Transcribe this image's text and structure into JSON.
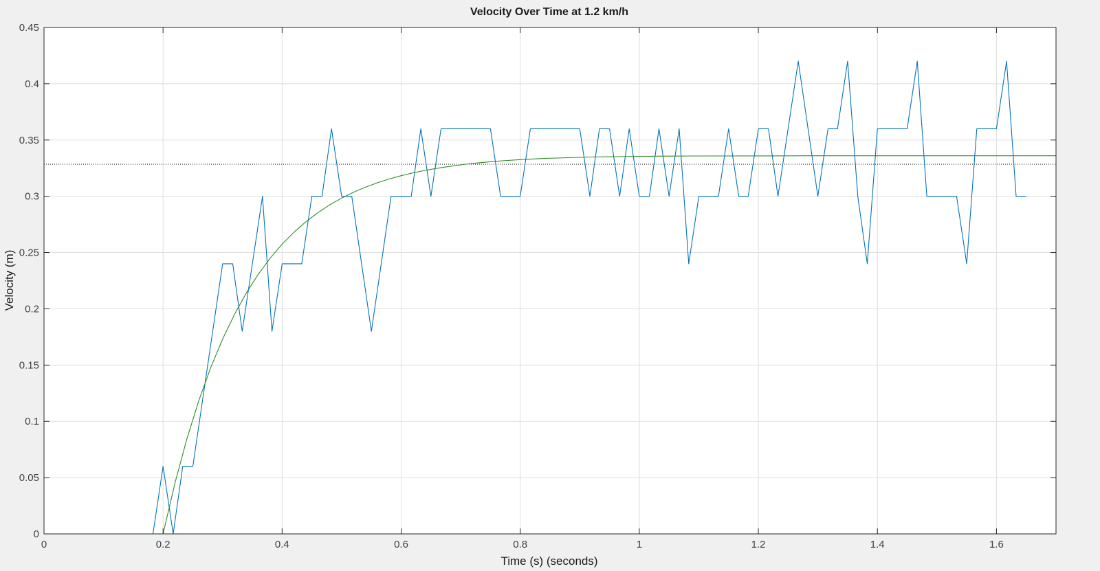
{
  "chart_data": {
    "type": "line",
    "title": "Velocity Over Time at 1.2 km/h",
    "xlabel": "Time (s) (seconds)",
    "ylabel": "Velocity (m)",
    "xlim": [
      0,
      1.7
    ],
    "ylim": [
      0,
      0.45
    ],
    "xticks": [
      0,
      0.2,
      0.4,
      0.6,
      0.8,
      1,
      1.2,
      1.4,
      1.6
    ],
    "xtick_labels": [
      "0",
      "0.2",
      "0.4",
      "0.6",
      "0.8",
      "1",
      "1.2",
      "1.4",
      "1.6"
    ],
    "yticks": [
      0,
      0.05,
      0.1,
      0.15,
      0.2,
      0.25,
      0.3,
      0.35,
      0.4,
      0.45
    ],
    "ytick_labels": [
      "0",
      "0.05",
      "0.1",
      "0.15",
      "0.2",
      "0.25",
      "0.3",
      "0.35",
      "0.4",
      "0.45"
    ],
    "grid": true,
    "reference_line": {
      "y": 0.3285,
      "style": "dotted",
      "color": "#000000"
    },
    "series": [
      {
        "color": "#0072bd",
        "x": [
          0,
          0.183,
          0.2,
          0.217,
          0.233,
          0.25,
          0.3,
          0.317,
          0.333,
          0.367,
          0.383,
          0.4,
          0.433,
          0.45,
          0.467,
          0.483,
          0.5,
          0.517,
          0.55,
          0.583,
          0.617,
          0.633,
          0.65,
          0.667,
          0.75,
          0.767,
          0.8,
          0.817,
          0.9,
          0.917,
          0.933,
          0.95,
          0.967,
          0.983,
          1.0,
          1.017,
          1.033,
          1.05,
          1.067,
          1.083,
          1.1,
          1.133,
          1.15,
          1.167,
          1.183,
          1.2,
          1.217,
          1.233,
          1.267,
          1.3,
          1.317,
          1.333,
          1.35,
          1.367,
          1.383,
          1.4,
          1.45,
          1.467,
          1.483,
          1.533,
          1.55,
          1.567,
          1.6,
          1.617,
          1.633,
          1.65
        ],
        "y": [
          0,
          0,
          0.06,
          0,
          0.06,
          0.06,
          0.24,
          0.24,
          0.18,
          0.3,
          0.18,
          0.24,
          0.24,
          0.3,
          0.3,
          0.36,
          0.3,
          0.3,
          0.18,
          0.3,
          0.3,
          0.36,
          0.3,
          0.36,
          0.36,
          0.3,
          0.3,
          0.36,
          0.36,
          0.3,
          0.36,
          0.36,
          0.3,
          0.36,
          0.3,
          0.3,
          0.36,
          0.3,
          0.36,
          0.24,
          0.3,
          0.3,
          0.36,
          0.3,
          0.3,
          0.36,
          0.36,
          0.3,
          0.42,
          0.3,
          0.36,
          0.36,
          0.42,
          0.3,
          0.24,
          0.36,
          0.36,
          0.42,
          0.3,
          0.3,
          0.24,
          0.36,
          0.36,
          0.42,
          0.3,
          0.3
        ]
      },
      {
        "color": "#2e8b24",
        "x": [
          0,
          0.2,
          0.22,
          0.24,
          0.26,
          0.28,
          0.3,
          0.32,
          0.34,
          0.36,
          0.38,
          0.4,
          0.42,
          0.44,
          0.46,
          0.48,
          0.5,
          0.52,
          0.54,
          0.56,
          0.58,
          0.6,
          0.62,
          0.64,
          0.66,
          0.68,
          0.7,
          0.72,
          0.74,
          0.76,
          0.78,
          0.8,
          0.84,
          0.88,
          0.92,
          0.96,
          1.0,
          1.05,
          1.1,
          1.2,
          1.3,
          1.4,
          1.5,
          1.6,
          1.7
        ],
        "y": [
          0,
          0,
          0.0452,
          0.0844,
          0.1183,
          0.1476,
          0.1731,
          0.1951,
          0.2142,
          0.2307,
          0.245,
          0.2574,
          0.2681,
          0.2774,
          0.2854,
          0.2924,
          0.2984,
          0.3036,
          0.3081,
          0.312,
          0.3154,
          0.3183,
          0.3208,
          0.323,
          0.3249,
          0.3265,
          0.3279,
          0.3292,
          0.3302,
          0.3311,
          0.3319,
          0.3326,
          0.3336,
          0.3343,
          0.3349,
          0.3352,
          0.3355,
          0.3357,
          0.3358,
          0.3359,
          0.336,
          0.336,
          0.336,
          0.336,
          0.336
        ]
      }
    ]
  }
}
